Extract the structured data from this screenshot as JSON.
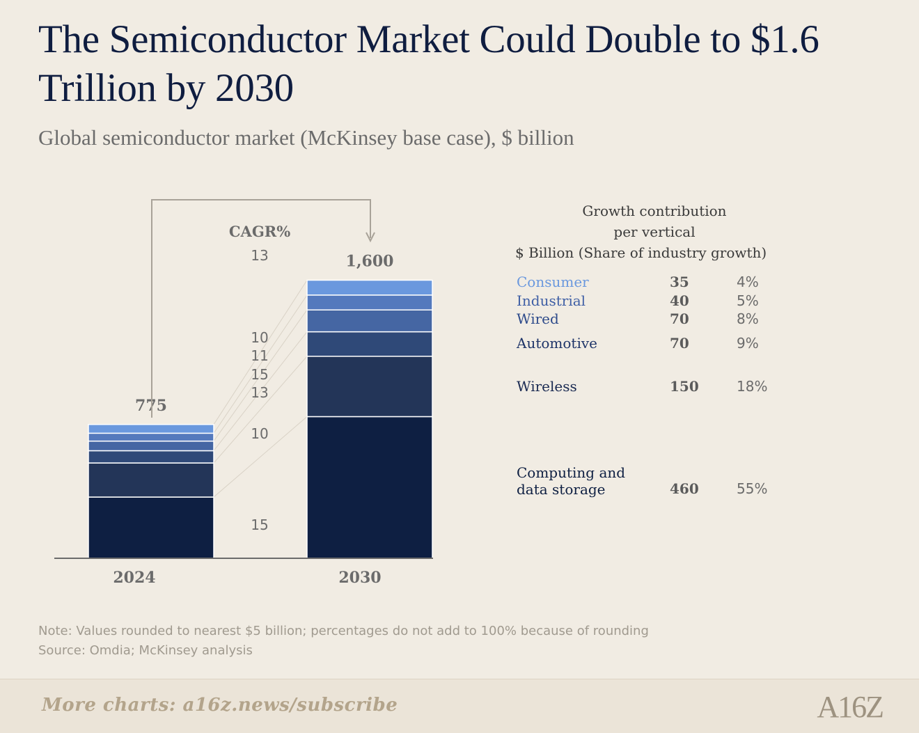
{
  "title": "The Semiconductor Market Could Double to $1.6 Trillion by 2030",
  "subtitle": "Global semiconductor market (McKinsey base case), $ billion",
  "chart_data": {
    "type": "bar",
    "stacked": true,
    "categories": [
      "2024",
      "2030"
    ],
    "totals": [
      "775",
      "1,600"
    ],
    "series": [
      {
        "name": "Computing and data storage",
        "values": [
          350,
          810
        ],
        "color": "#0e1f42",
        "cagr": "15"
      },
      {
        "name": "Wireless",
        "values": [
          195,
          345
        ],
        "color": "#233558",
        "cagr": "10"
      },
      {
        "name": "Automotive",
        "values": [
          70,
          140
        ],
        "color": "#2f4978",
        "cagr": "13"
      },
      {
        "name": "Wired",
        "values": [
          55,
          125
        ],
        "color": "#4566a3",
        "cagr": "15"
      },
      {
        "name": "Industrial",
        "values": [
          45,
          85
        ],
        "color": "#5479bd",
        "cagr": "11"
      },
      {
        "name": "Consumer",
        "values": [
          50,
          85
        ],
        "color": "#6a98de",
        "cagr": "10"
      }
    ],
    "cagr_header": "CAGR%",
    "cagr_total": "13",
    "ylim": [
      0,
      1600
    ]
  },
  "panel": {
    "heading_line1": "Growth contribution",
    "heading_line2": "per vertical",
    "heading_line3": "$ Billion (Share of industry growth)",
    "rows": [
      {
        "name": "Consumer",
        "value": "35",
        "share": "4%",
        "color": "#6a98de"
      },
      {
        "name": "Industrial",
        "value": "40",
        "share": "5%",
        "color": "#3f5fa5"
      },
      {
        "name": "Wired",
        "value": "70",
        "share": "8%",
        "color": "#2d4a8a"
      },
      {
        "name": "Automotive",
        "value": "70",
        "share": "9%",
        "color": "#1e3468"
      },
      {
        "name": "Wireless",
        "value": "150",
        "share": "18%",
        "color": "#1a2a52"
      },
      {
        "name": "Computing and data storage",
        "name_line1": "Computing and",
        "name_line2": "data storage",
        "value": "460",
        "share": "55%",
        "color": "#0e1f42"
      }
    ]
  },
  "note": "Note: Values rounded to nearest $5 billion; percentages do not add to 100% because of rounding",
  "source": "Source: Omdia; McKinsey analysis",
  "footer": "More charts: a16z.news/subscribe",
  "logo": "A16Z"
}
